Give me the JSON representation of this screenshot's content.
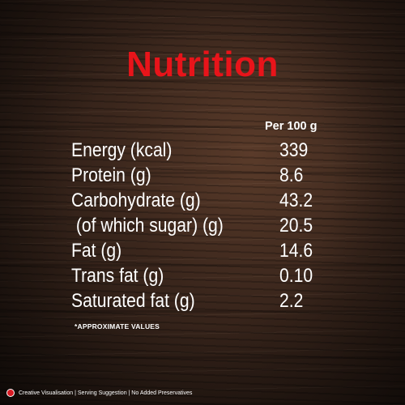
{
  "title": "Nutrition",
  "column_header": "Per 100 g",
  "rows": [
    {
      "label": "Energy (kcal)",
      "value": "339"
    },
    {
      "label": "Protein (g)",
      "value": "8.6"
    },
    {
      "label": "Carbohydrate (g)",
      "value": "43.2"
    },
    {
      "label": " (of which sugar) (g)",
      "value": "20.5"
    },
    {
      "label": "Fat (g)",
      "value": "14.6"
    },
    {
      "label": "Trans fat (g)",
      "value": "0.10"
    },
    {
      "label": "Saturated fat (g)",
      "value": "2.2"
    }
  ],
  "note": "*APPROXIMATE VALUES",
  "footer": {
    "icon": "veg-mark-icon",
    "text": "Creative Visualisation | Serving Suggestion | No Added Preservatives"
  },
  "colors": {
    "title": "#e8141a",
    "text": "#ffffff",
    "background": "#2a1c15"
  }
}
